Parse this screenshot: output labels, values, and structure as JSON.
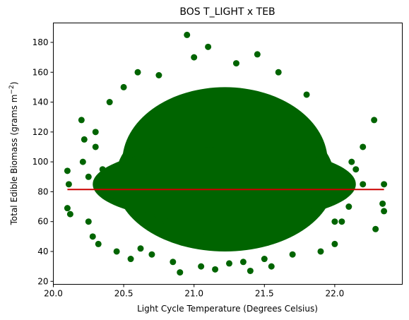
{
  "chart_data": {
    "type": "scatter",
    "title": "BOS T_LIGHT x TEB",
    "xlabel": "Light Cycle Temperature (Degrees Celsius)",
    "ylabel_prefix": "Total Edible Biomass (grams m",
    "ylabel_sup": "−2",
    "ylabel_suffix": ")",
    "xlim": [
      20.0,
      22.48
    ],
    "ylim": [
      18,
      193
    ],
    "xticks": [
      {
        "value": 20.0,
        "label": "20.0"
      },
      {
        "value": 20.5,
        "label": "20.5"
      },
      {
        "value": 21.0,
        "label": "21.0"
      },
      {
        "value": 21.5,
        "label": "21.5"
      },
      {
        "value": 22.0,
        "label": "22.0"
      }
    ],
    "yticks": [
      {
        "value": 20,
        "label": "20"
      },
      {
        "value": 40,
        "label": "40"
      },
      {
        "value": 60,
        "label": "60"
      },
      {
        "value": 80,
        "label": "80"
      },
      {
        "value": 100,
        "label": "100"
      },
      {
        "value": 120,
        "label": "120"
      },
      {
        "value": 140,
        "label": "140"
      },
      {
        "value": 160,
        "label": "160"
      },
      {
        "value": 180,
        "label": "180"
      }
    ],
    "grid": false,
    "series": [
      {
        "kind": "scatter",
        "color": "#006400",
        "x": [
          20.6,
          20.75,
          20.95,
          21.0,
          21.1,
          21.3,
          21.45,
          21.6,
          21.2,
          20.5,
          21.8,
          20.4,
          20.1,
          20.11,
          20.1,
          20.12,
          20.2,
          20.22,
          20.21,
          20.25,
          20.3,
          20.35,
          20.28,
          20.32,
          20.45,
          20.55,
          20.62,
          20.7,
          20.85,
          21.05,
          21.25,
          21.35,
          21.5,
          21.7,
          21.9,
          22.0,
          22.05,
          22.1,
          22.12,
          22.2,
          22.2,
          22.28,
          22.29,
          22.35,
          22.34,
          22.35,
          20.9,
          21.15,
          21.4,
          21.55,
          20.65,
          21.65,
          20.8,
          21.3,
          21.7,
          20.5,
          22.1,
          20.3,
          20.9,
          21.6,
          21.0,
          21.2,
          20.7,
          21.75,
          20.6,
          21.85,
          20.45,
          21.95,
          20.35,
          22.0,
          20.25,
          22.15
        ],
        "y": [
          160,
          158,
          185,
          170,
          177,
          166,
          172,
          160,
          140,
          150,
          145,
          140,
          94,
          85,
          69,
          65,
          128,
          115,
          100,
          60,
          110,
          95,
          50,
          45,
          40,
          35,
          42,
          38,
          33,
          30,
          32,
          33,
          35,
          38,
          40,
          45,
          60,
          70,
          100,
          85,
          110,
          128,
          55,
          85,
          72,
          67,
          26,
          28,
          27,
          30,
          90,
          95,
          60,
          70,
          75,
          100,
          90,
          120,
          130,
          130,
          80,
          85,
          110,
          110,
          65,
          70,
          75,
          80,
          85,
          60,
          90,
          95
        ]
      },
      {
        "kind": "line",
        "color": "#cc0000",
        "x": [
          20.1,
          22.35
        ],
        "y": [
          81.5,
          81.5
        ]
      }
    ]
  }
}
